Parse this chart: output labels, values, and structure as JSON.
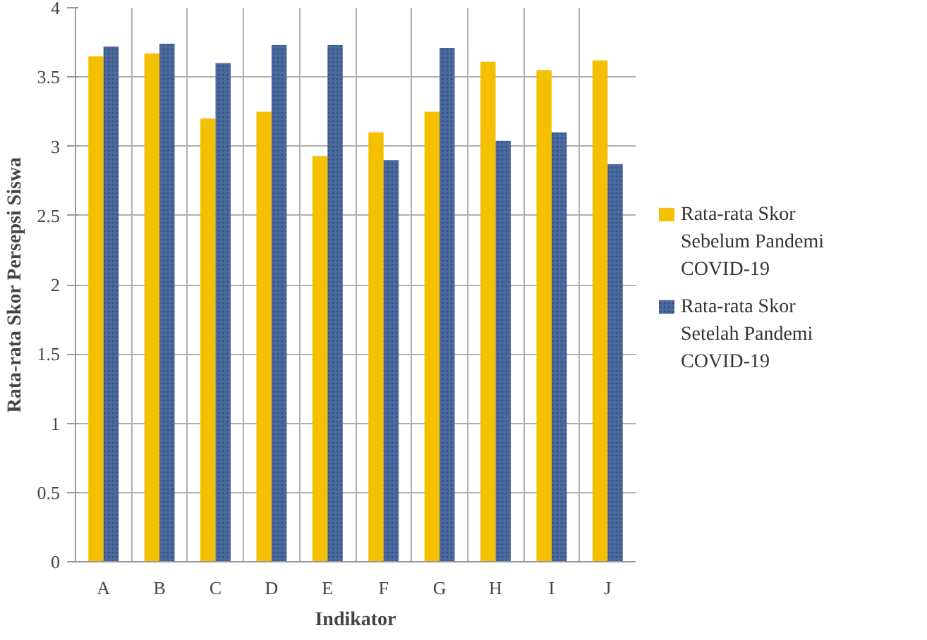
{
  "chart_data": {
    "type": "bar",
    "xlabel": "Indikator",
    "ylabel": "Rata-rata Skor Persepsi Siswa",
    "categories": [
      "A",
      "B",
      "C",
      "D",
      "E",
      "F",
      "G",
      "H",
      "I",
      "J"
    ],
    "series": [
      {
        "name": "Rata-rata Skor Sebelum Pandemi COVID-19",
        "color": "#f5c000",
        "values": [
          3.65,
          3.67,
          3.2,
          3.25,
          2.93,
          3.1,
          3.25,
          3.61,
          3.55,
          3.62
        ]
      },
      {
        "name": "Rata-rata Skor Setelah Pandemi COVID-19",
        "color": "#4a6aa0",
        "values": [
          3.72,
          3.74,
          3.6,
          3.73,
          3.73,
          2.9,
          3.71,
          3.04,
          3.1,
          2.87
        ]
      }
    ],
    "ylim": [
      0,
      4
    ],
    "yticks": [
      0,
      0.5,
      1,
      1.5,
      2,
      2.5,
      3,
      3.5,
      4
    ],
    "grid": true,
    "legend": "right"
  }
}
